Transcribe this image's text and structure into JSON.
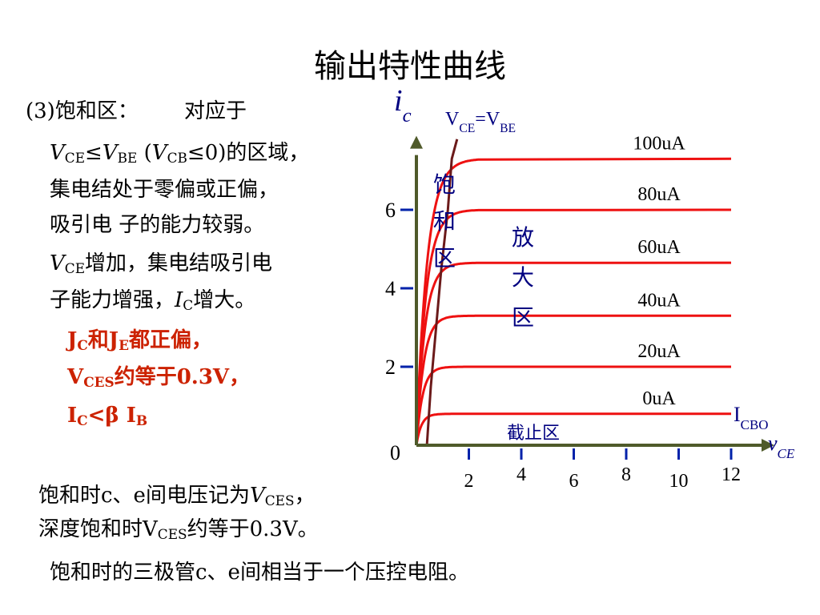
{
  "title": "输出特性曲线",
  "left_text": {
    "heading_num": "(3)",
    "heading": "饱和区：",
    "heading_right": "对应于",
    "line1": {
      "v1": "V",
      "s1": "CE",
      "op": "≤",
      "v2": "V",
      "s2": "BE",
      "p_open": " (",
      "v3": "V",
      "s3": "CB",
      "cond": "≤0)",
      "rest": "的区域，"
    },
    "line2": "集电结处于零偏或正偏，",
    "line3": "吸引电 子的能力较弱。",
    "line4": {
      "v": "V",
      "s": "CE",
      "rest": "增加，集电结吸引电"
    },
    "line5": {
      "pre": "子能力增强，",
      "v": "I",
      "s": "C",
      "rest": "增大。"
    }
  },
  "red_text": {
    "line1": {
      "a": "J",
      "as": "C",
      "mid": "和",
      "b": "J",
      "bs": "E",
      "rest": "都正偏，"
    },
    "line2": {
      "a": "V",
      "as": "CES",
      "rest": "约等于0.3V，"
    },
    "line3": {
      "a": "I",
      "as": "C",
      "op": "<β ",
      "b": "I",
      "bs": "B"
    }
  },
  "bottom_text": {
    "line1": {
      "pre": "饱和时c、e间电压记为",
      "v": "V",
      "s": "CES",
      "rest": "，"
    },
    "line2": {
      "pre": "深度饱和时V",
      "s": "CES",
      "rest": "约等于0.3V。"
    },
    "line3": "饱和时的三极管c、e间相当于一个压控电阻。"
  },
  "chart_data": {
    "type": "line",
    "ylabel": {
      "v": "i",
      "s": "c"
    },
    "xlabel": {
      "v": "v",
      "s": "CE"
    },
    "xlim": [
      0,
      12
    ],
    "ylim": [
      0,
      7.6
    ],
    "x_ticks": [
      "2",
      "4",
      "6",
      "8",
      "10",
      "12"
    ],
    "y_ticks": [
      "2",
      "4",
      "6"
    ],
    "origin_label": "0",
    "boundary_label": {
      "a": "V",
      "as": "CE",
      "mid": "=V",
      "bs": "BE"
    },
    "region_labels": {
      "saturation": [
        "饱",
        "和",
        "区"
      ],
      "active": [
        "放",
        "大",
        "区"
      ],
      "cutoff": "截止区"
    },
    "icbo_label": {
      "a": "I",
      "as": "CBO"
    },
    "colors": {
      "curves": "#ee1111",
      "axes": "#4f5a2a",
      "boundary": "#6b1a1a",
      "ticks": "#0022aa",
      "labels": "#000080"
    },
    "series": [
      {
        "name": "0uA",
        "level": 0.8
      },
      {
        "name": "20uA",
        "level": 2.0
      },
      {
        "name": "40uA",
        "level": 3.3
      },
      {
        "name": "60uA",
        "level": 4.65
      },
      {
        "name": "80uA",
        "level": 6.0
      },
      {
        "name": "100uA",
        "level": 7.3
      }
    ]
  }
}
